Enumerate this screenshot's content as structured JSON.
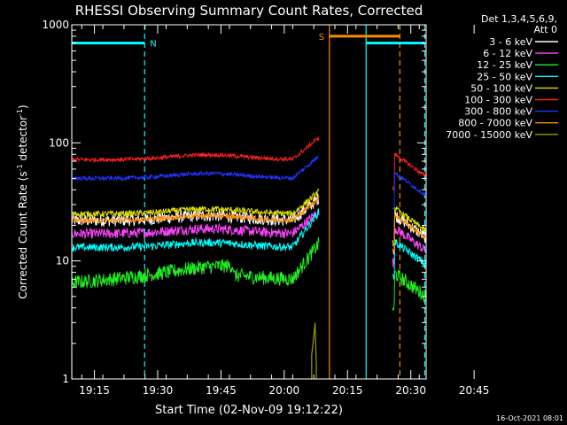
{
  "chart_data": {
    "type": "line",
    "title": "RHESSI Observing Summary Count Rates, Corrected",
    "xlabel": "Start Time (02-Nov-09 19:12:22)",
    "ylabel_main": "Corrected Count Rate (s",
    "ylabel_sup1": "-1",
    "ylabel_mid": " detector",
    "ylabel_sup2": "-1",
    "ylabel_end": ")",
    "y_scale": "log",
    "ylim": [
      1,
      1000
    ],
    "y_ticks": [
      {
        "value": 1,
        "label": "1"
      },
      {
        "value": 10,
        "label": "10"
      },
      {
        "value": 100,
        "label": "100"
      },
      {
        "value": 1000,
        "label": "1000"
      }
    ],
    "xlim_min": [
      -2.37,
      81.63
    ],
    "x_ticks": [
      {
        "value": 3,
        "label": "19:15"
      },
      {
        "value": 18,
        "label": "19:30"
      },
      {
        "value": 33,
        "label": "19:45"
      },
      {
        "value": 48,
        "label": "20:00"
      },
      {
        "value": 63,
        "label": "20:15"
      },
      {
        "value": 78,
        "label": "20:30"
      },
      {
        "value": 93,
        "label": "20:45"
      }
    ],
    "legend_header": [
      "Det 1,3,4,5,6,9,",
      "Att 0"
    ],
    "legend_placement": "top-right outside",
    "series": [
      {
        "name": "3 - 6 keV",
        "color": "#ffffff",
        "base": 22,
        "noise": 0.12
      },
      {
        "name": "6 - 12 keV",
        "color": "#ff44ff",
        "base": 17,
        "noise": 0.1
      },
      {
        "name": "12 - 25 keV",
        "color": "#22ee22",
        "base": 7,
        "noise": 0.14
      },
      {
        "name": "25 - 50 keV",
        "color": "#00ffff",
        "base": 13,
        "noise": 0.08
      },
      {
        "name": "50 - 100 keV",
        "color": "#dddd00",
        "base": 25,
        "noise": 0.06
      },
      {
        "name": "100 - 300 keV",
        "color": "#ff2020",
        "base": 72,
        "noise": 0.04
      },
      {
        "name": "300 - 800 keV",
        "color": "#2233ff",
        "base": 50,
        "noise": 0.04
      },
      {
        "name": "800 - 7000 keV",
        "color": "#ff8c00",
        "base": 22,
        "noise": 0.05
      },
      {
        "name": "7000 - 15000 keV",
        "color": "#999900",
        "base": 0,
        "noise": 0
      }
    ],
    "time_segments": [
      [
        -2.37,
        56.3
      ],
      [
        73.7,
        81.63
      ]
    ],
    "night_bars": [
      {
        "label": "N",
        "start": -2.37,
        "end": 14.9,
        "level": 700
      },
      {
        "start": 67.4,
        "end": 81.3,
        "level": 700
      }
    ],
    "saa_bar": {
      "label": "S",
      "start": 58.7,
      "end": 75.4,
      "level": 800
    },
    "cyan_solid_lines": [
      -2.37,
      67.4
    ],
    "cyan_dashed_lines": [
      14.9,
      81.3
    ],
    "orange_solid_lines": [
      58.7
    ],
    "orange_dashed_lines": [
      75.4
    ],
    "footer_date": "16-Oct-2021 08:01"
  }
}
